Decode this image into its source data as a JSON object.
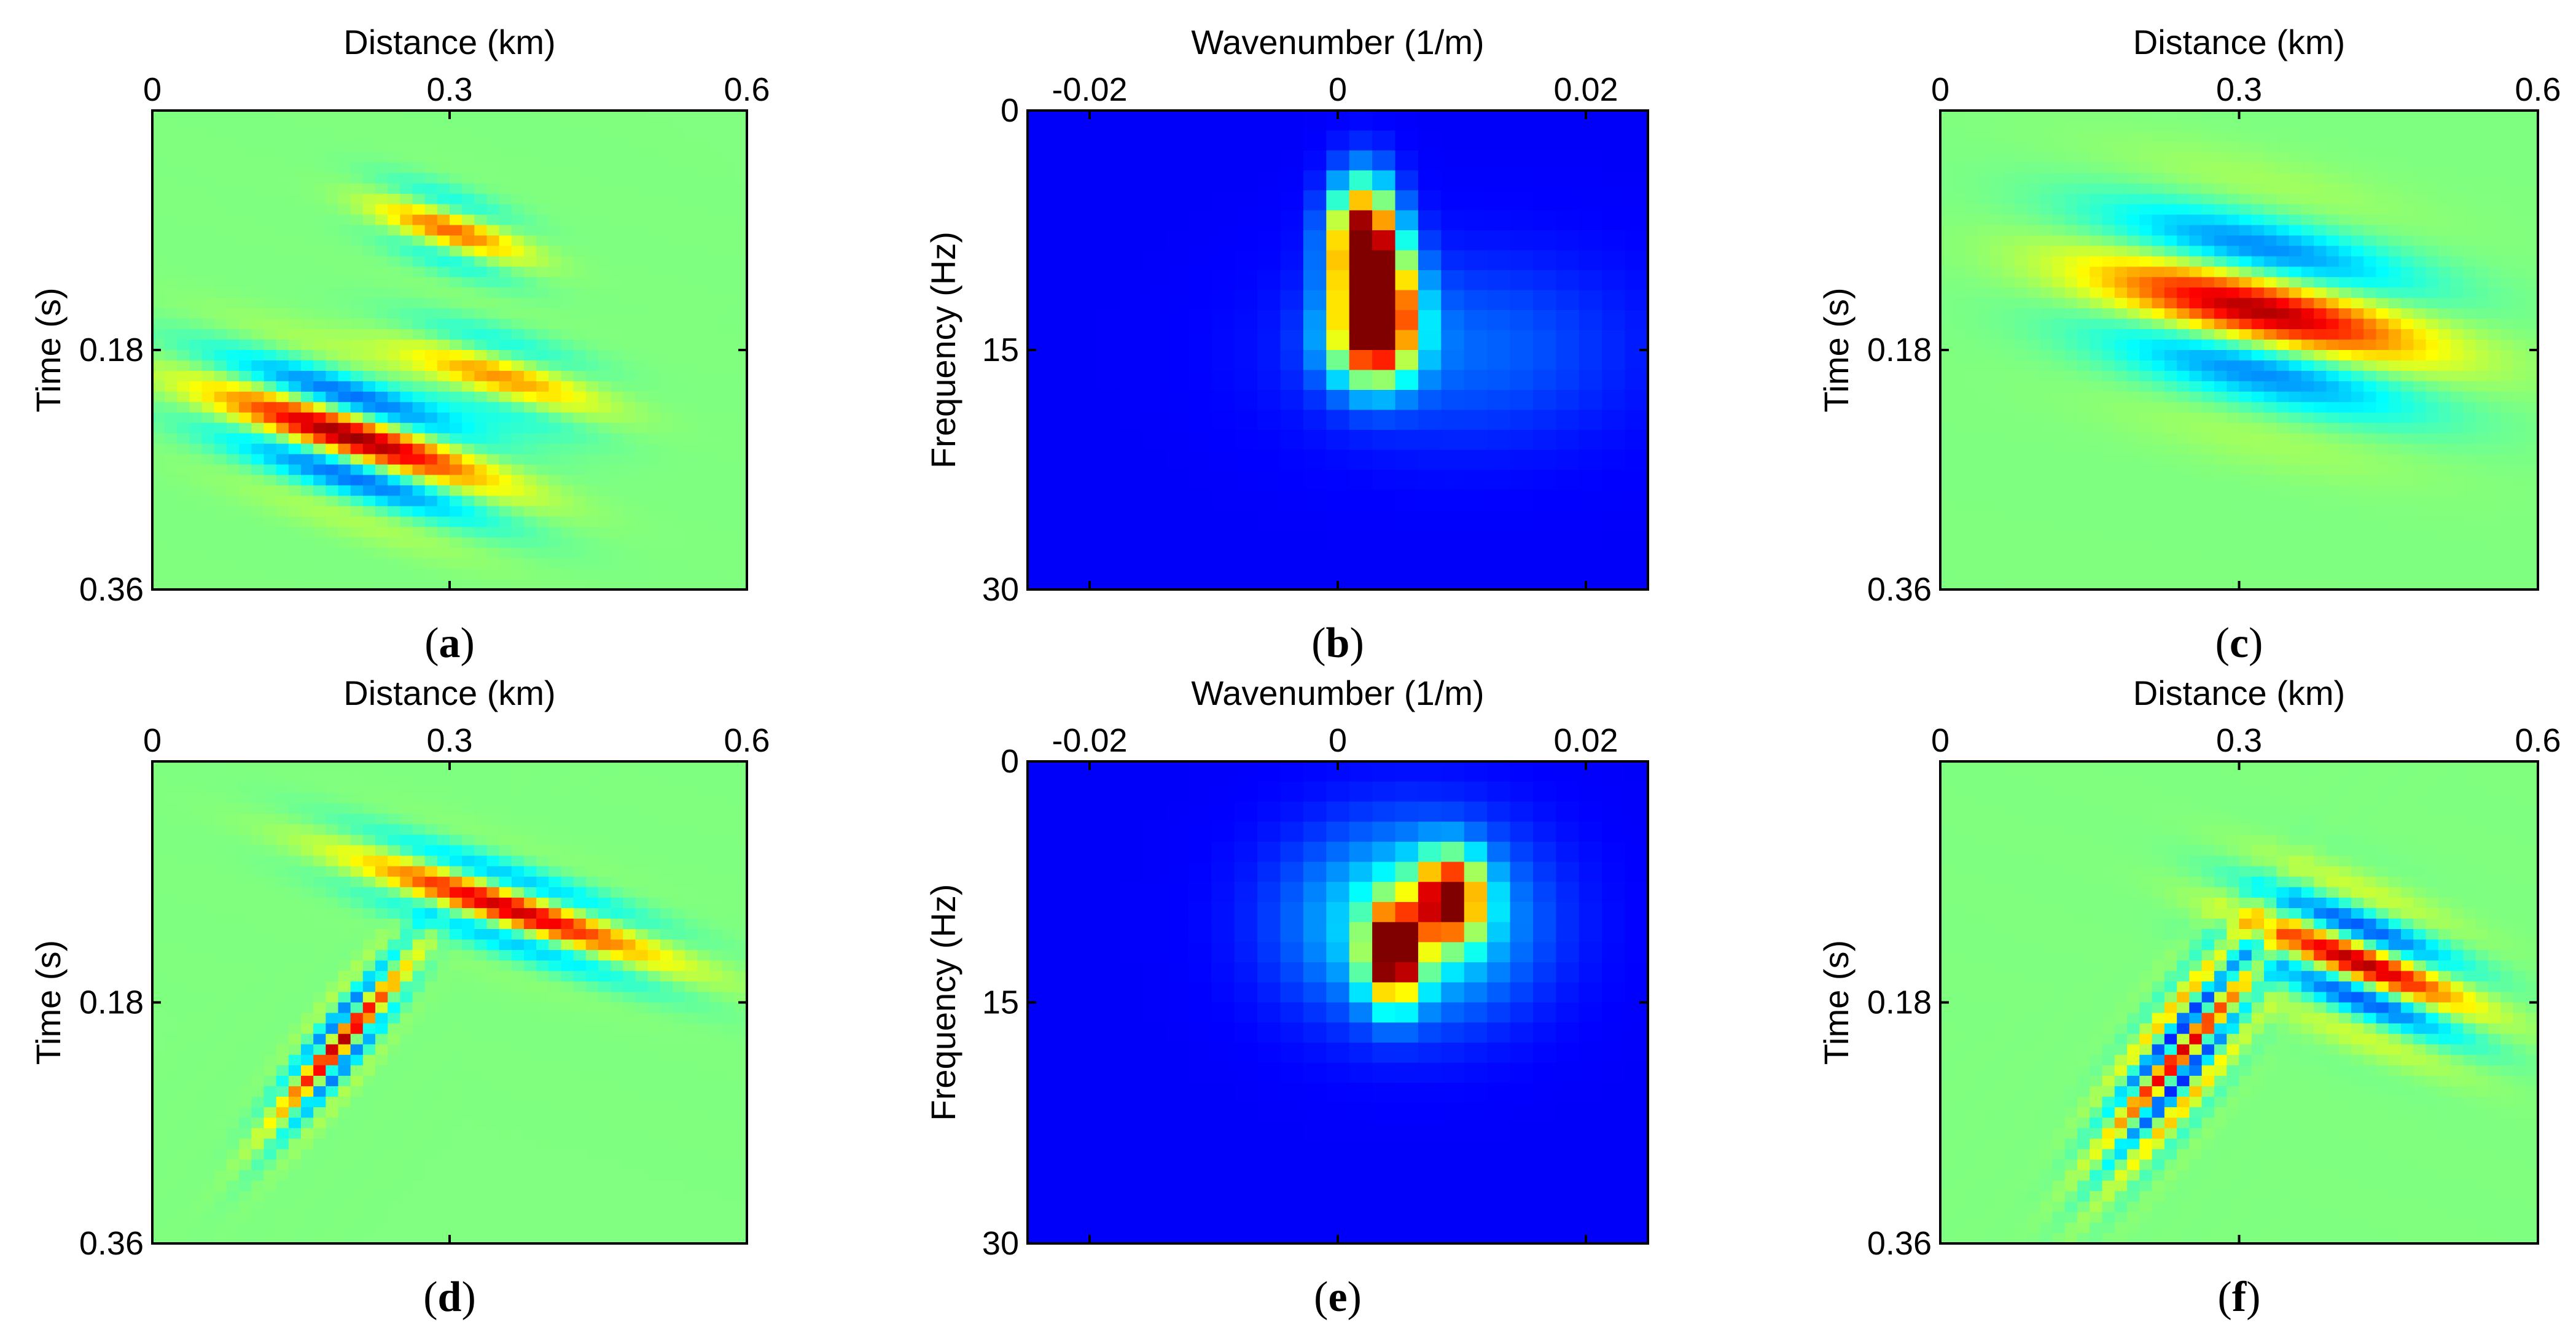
{
  "chart_data": [
    {
      "id": "a",
      "caption": "a",
      "type": "heatmap",
      "kind": "seismic-section",
      "xlabel": "Distance (km)",
      "ylabel": "Time (s)",
      "xlim": [
        0,
        0.6
      ],
      "ylim": [
        0,
        0.36
      ],
      "xticks": [
        "0",
        "0.3",
        "0.6"
      ],
      "yticks": [
        "0.18",
        "0.36"
      ],
      "x_axis_position": "top",
      "y_axis_inverted": true,
      "colormap": "jet",
      "events": [
        {
          "x": 0.3,
          "t": 0.09,
          "slope": 0.23,
          "half_length": 0.09,
          "thickness": 0.018,
          "amp": 0.55,
          "wavelength": 0.06
        },
        {
          "x": 0.2,
          "t": 0.245,
          "slope": 0.23,
          "half_length": 0.17,
          "thickness": 0.03,
          "amp": 0.95,
          "wavelength": 0.07
        },
        {
          "x": 0.35,
          "t": 0.2,
          "slope": 0.2,
          "half_length": 0.12,
          "thickness": 0.022,
          "amp": 0.45,
          "wavelength": 0.065
        }
      ]
    },
    {
      "id": "b",
      "caption": "b",
      "type": "heatmap",
      "kind": "spectrum",
      "xlabel": "Wavenumber (1/m)",
      "ylabel": "Frequency (Hz)",
      "xlim": [
        -0.025,
        0.025
      ],
      "ylim": [
        0,
        30
      ],
      "xticks": [
        "-0.02",
        "0",
        "0.02"
      ],
      "yticks": [
        "0",
        "15",
        "30"
      ],
      "x_axis_position": "top",
      "y_axis_inverted": true,
      "colormap": "jet",
      "blobs": [
        {
          "k": 0.002,
          "f": 8.0,
          "sk": 0.0018,
          "sf": 2.5,
          "amp": 0.95
        },
        {
          "k": 0.0032,
          "f": 12.0,
          "sk": 0.002,
          "sf": 2.5,
          "amp": 1.0
        },
        {
          "k": 0.0026,
          "f": 14.5,
          "sk": 0.0025,
          "sf": 2.0,
          "amp": 0.5
        },
        {
          "k": 0.01,
          "f": 15.0,
          "sk": 0.009,
          "sf": 4.0,
          "amp": 0.12
        }
      ]
    },
    {
      "id": "c",
      "caption": "c",
      "type": "heatmap",
      "kind": "seismic-section",
      "xlabel": "Distance (km)",
      "ylabel": "Time (s)",
      "xlim": [
        0,
        0.6
      ],
      "ylim": [
        0,
        0.36
      ],
      "xticks": [
        "0",
        "0.3",
        "0.6"
      ],
      "yticks": [
        "0.18",
        "0.36"
      ],
      "x_axis_position": "top",
      "y_axis_inverted": true,
      "colormap": "jet",
      "events": [
        {
          "x": 0.32,
          "t": 0.15,
          "slope": 0.16,
          "half_length": 0.2,
          "thickness": 0.045,
          "amp": 0.9,
          "wavelength": 0.11
        }
      ]
    },
    {
      "id": "d",
      "caption": "d",
      "type": "heatmap",
      "kind": "seismic-section",
      "xlabel": "Distance (km)",
      "ylabel": "Time (s)",
      "xlim": [
        0,
        0.6
      ],
      "ylim": [
        0,
        0.36
      ],
      "xticks": [
        "0",
        "0.3",
        "0.6"
      ],
      "yticks": [
        "0.18",
        "0.36"
      ],
      "x_axis_position": "top",
      "y_axis_inverted": true,
      "colormap": "jet",
      "events": [
        {
          "x": 0.36,
          "t": 0.11,
          "slope": 0.24,
          "half_length": 0.18,
          "thickness": 0.02,
          "amp": 0.85,
          "wavelength": 0.06
        },
        {
          "x": 0.19,
          "t": 0.21,
          "slope": -0.85,
          "half_length": 0.08,
          "thickness": 0.02,
          "amp": 0.9,
          "wavelength": 0.045
        }
      ]
    },
    {
      "id": "e",
      "caption": "e",
      "type": "heatmap",
      "kind": "spectrum",
      "xlabel": "Wavenumber (1/m)",
      "ylabel": "Frequency (Hz)",
      "xlim": [
        -0.025,
        0.025
      ],
      "ylim": [
        0,
        30
      ],
      "xticks": [
        "-0.02",
        "0",
        "0.02"
      ],
      "yticks": [
        "0",
        "15",
        "30"
      ],
      "x_axis_position": "top",
      "y_axis_inverted": true,
      "colormap": "jet",
      "blobs": [
        {
          "k": 0.0045,
          "f": 12.0,
          "sk": 0.0015,
          "sf": 2.0,
          "amp": 1.0
        },
        {
          "k": 0.009,
          "f": 8.5,
          "sk": 0.0018,
          "sf": 1.8,
          "amp": 0.85
        },
        {
          "k": 0.006,
          "f": 10.0,
          "sk": 0.0065,
          "sf": 4.0,
          "amp": 0.35
        }
      ]
    },
    {
      "id": "f",
      "caption": "f",
      "type": "heatmap",
      "kind": "seismic-section",
      "xlabel": "Distance (km)",
      "ylabel": "Time (s)",
      "xlim": [
        0,
        0.6
      ],
      "ylim": [
        0,
        0.36
      ],
      "xticks": [
        "0",
        "0.3",
        "0.6"
      ],
      "yticks": [
        "0.18",
        "0.36"
      ],
      "x_axis_position": "top",
      "y_axis_inverted": true,
      "colormap": "jet",
      "events": [
        {
          "x": 0.42,
          "t": 0.15,
          "slope": 0.28,
          "half_length": 0.13,
          "thickness": 0.03,
          "amp": 0.9,
          "wavelength": 0.06
        },
        {
          "x": 0.24,
          "t": 0.22,
          "slope": -0.85,
          "half_length": 0.09,
          "thickness": 0.032,
          "amp": 0.85,
          "wavelength": 0.042
        }
      ]
    }
  ]
}
